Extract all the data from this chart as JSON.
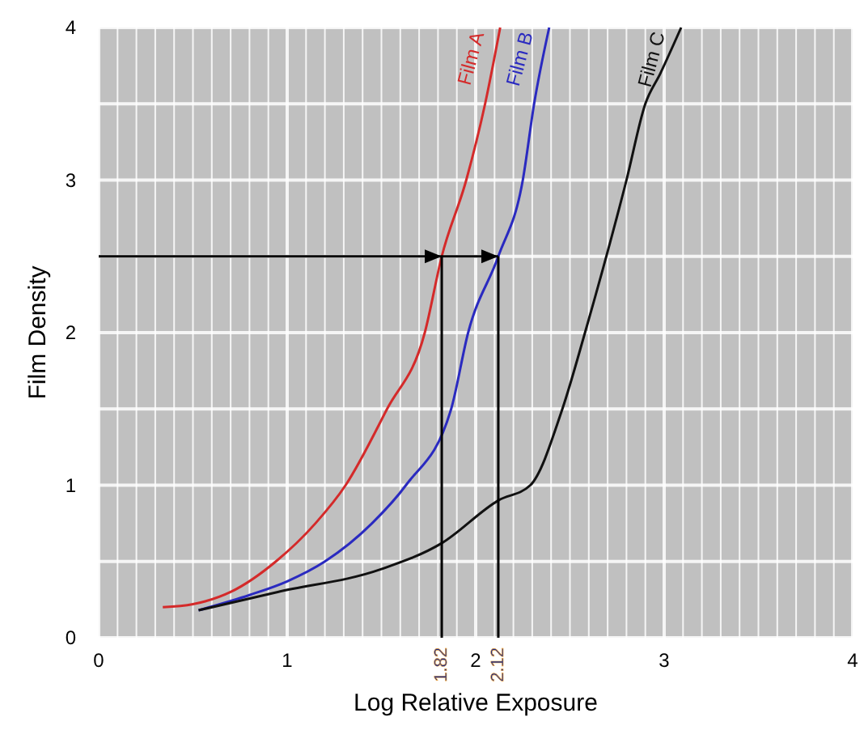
{
  "chart_data": {
    "type": "line",
    "xlabel": "Log Relative Exposure",
    "ylabel": "Film Density",
    "xlim": [
      0,
      4
    ],
    "ylim": [
      0,
      4
    ],
    "xticks": [
      0,
      {
        "value": 0.1,
        "label": null
      },
      {
        "value": 0.2,
        "label": null
      },
      {
        "value": 0.3,
        "label": null
      },
      {
        "value": 0.4,
        "label": null
      },
      {
        "value": 0.5,
        "label": null
      },
      {
        "value": 0.6,
        "label": null
      },
      {
        "value": 0.7,
        "label": null
      },
      {
        "value": 0.8,
        "label": null
      },
      {
        "value": 0.9,
        "label": null
      },
      1,
      {
        "value": 1.1,
        "label": null
      },
      {
        "value": 1.2,
        "label": null
      },
      {
        "value": 1.3,
        "label": null
      },
      {
        "value": 1.4,
        "label": null
      },
      {
        "value": 1.5,
        "label": null
      },
      {
        "value": 1.6,
        "label": null
      },
      {
        "value": 1.7,
        "label": null
      },
      {
        "value": 1.8,
        "label": null
      },
      {
        "value": 1.9,
        "label": null
      },
      2,
      {
        "value": 2.1,
        "label": null
      },
      {
        "value": 2.2,
        "label": null
      },
      {
        "value": 2.3,
        "label": null
      },
      {
        "value": 2.4,
        "label": null
      },
      {
        "value": 2.5,
        "label": null
      },
      {
        "value": 2.6,
        "label": null
      },
      {
        "value": 2.7,
        "label": null
      },
      {
        "value": 2.8,
        "label": null
      },
      {
        "value": 2.9,
        "label": null
      },
      3,
      {
        "value": 3.1,
        "label": null
      },
      {
        "value": 3.2,
        "label": null
      },
      {
        "value": 3.3,
        "label": null
      },
      {
        "value": 3.4,
        "label": null
      },
      {
        "value": 3.5,
        "label": null
      },
      {
        "value": 3.6,
        "label": null
      },
      {
        "value": 3.7,
        "label": null
      },
      {
        "value": 3.8,
        "label": null
      },
      {
        "value": 3.9,
        "label": null
      },
      4
    ],
    "yticks": [
      0,
      {
        "value": 0.5,
        "label": null
      },
      1,
      {
        "value": 1.5,
        "label": null
      },
      2,
      {
        "value": 2.5,
        "label": null
      },
      3,
      {
        "value": 3.5,
        "label": null
      },
      4
    ],
    "grid": true,
    "marker": "none",
    "line_style": "solid",
    "series": [
      {
        "name": "Film A",
        "color": "#d42a2a",
        "x": [
          0.34,
          0.5,
          0.7,
          0.94,
          1.15,
          1.31,
          1.53,
          1.73,
          1.82,
          1.95,
          2.05,
          2.13
        ],
        "values": [
          0.2,
          0.22,
          0.3,
          0.5,
          0.75,
          1.0,
          1.5,
          2.0,
          2.5,
          3.0,
          3.5,
          4.0
        ]
      },
      {
        "name": "Film B",
        "color": "#2a2ac0",
        "x": [
          0.53,
          0.8,
          1.0,
          1.2,
          1.45,
          1.63,
          1.87,
          1.96,
          2.12,
          2.25,
          2.31,
          2.39
        ],
        "values": [
          0.18,
          0.28,
          0.37,
          0.5,
          0.75,
          1.0,
          1.5,
          2.0,
          2.5,
          3.0,
          3.5,
          4.0
        ]
      },
      {
        "name": "Film C",
        "color": "#111111",
        "x": [
          0.53,
          0.95,
          1.5,
          1.82,
          2.12,
          2.29,
          2.46,
          2.58,
          2.8,
          2.9,
          2.98,
          3.09
        ],
        "values": [
          0.18,
          0.3,
          0.45,
          0.62,
          0.9,
          1.0,
          1.5,
          2.0,
          3.0,
          3.5,
          3.7,
          4.0
        ]
      }
    ],
    "ref_lines": [
      {
        "axis": "x",
        "value": 1.82,
        "label": "1.82",
        "color": "#000000"
      },
      {
        "axis": "x",
        "value": 2.12,
        "label": "2.12",
        "color": "#000000"
      },
      {
        "axis": "y",
        "value": 2.5,
        "label": null,
        "color": "#000000"
      }
    ]
  }
}
